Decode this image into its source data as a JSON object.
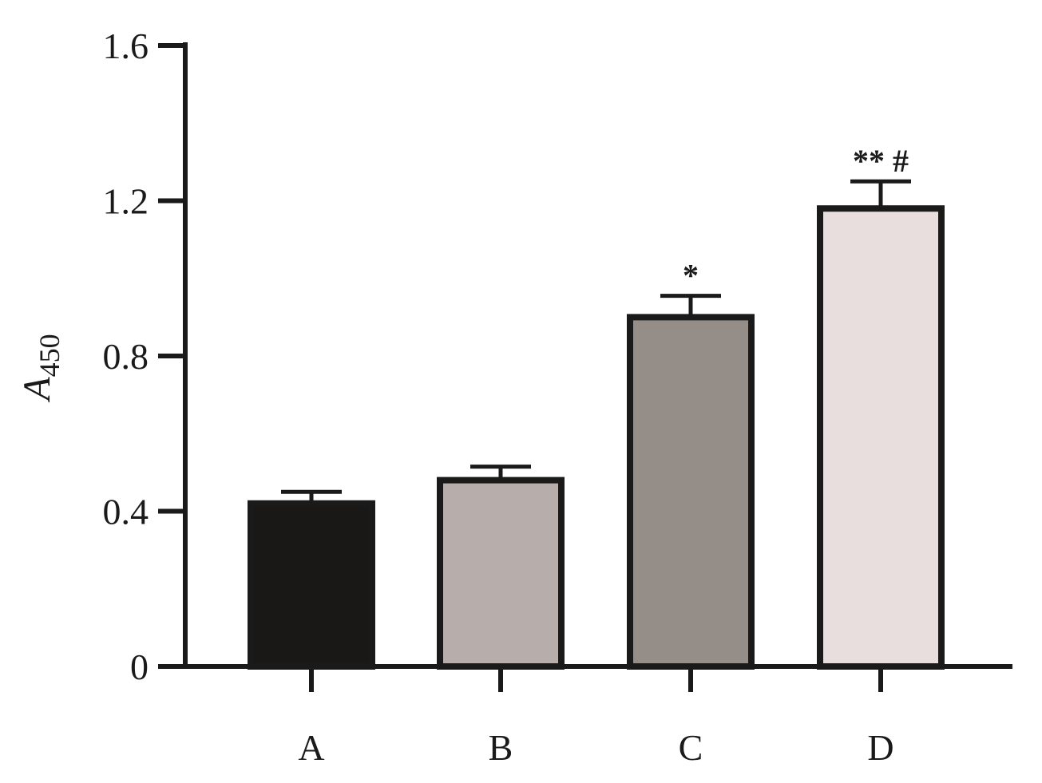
{
  "chart_data": {
    "type": "bar",
    "categories": [
      "A",
      "B",
      "C",
      "D"
    ],
    "values": [
      0.42,
      0.48,
      0.9,
      1.18
    ],
    "errors": [
      0.03,
      0.035,
      0.055,
      0.07
    ],
    "significance": [
      "",
      "",
      "*",
      "** #"
    ],
    "colors": [
      "#1a1816",
      "#b7adab",
      "#958d88",
      "#e8dedd"
    ],
    "edge_color": "#1a1a1a",
    "ylim": [
      0,
      1.6
    ],
    "yticks": [
      0,
      0.4,
      0.8,
      1.2,
      1.6
    ],
    "ytick_labels": [
      "0",
      "0.4",
      "0.8",
      "1.2",
      "1.6"
    ],
    "ylabel_main": "A",
    "ylabel_sub": "450",
    "xlabel": "",
    "title": "",
    "grid": false,
    "legend": "none"
  }
}
